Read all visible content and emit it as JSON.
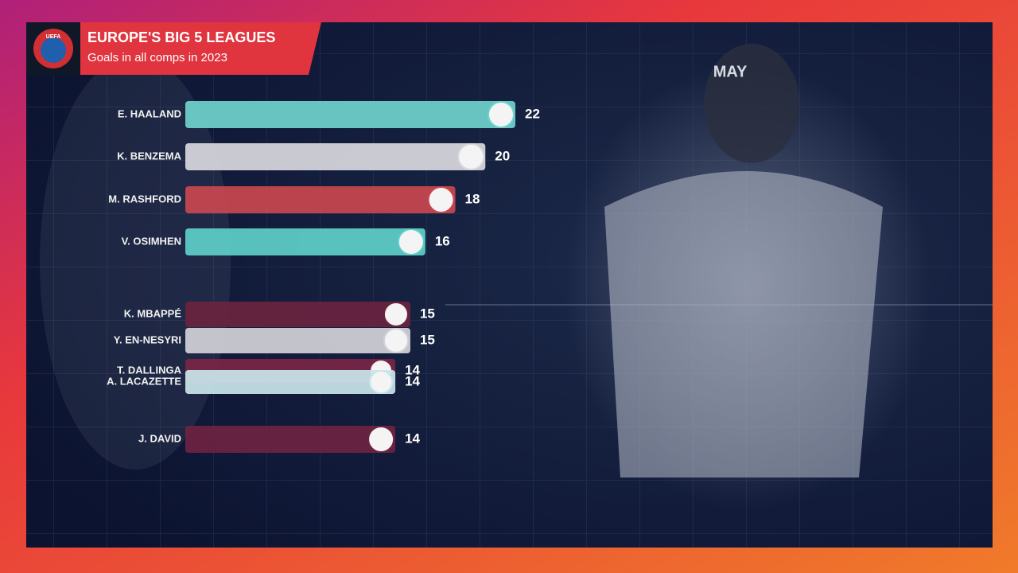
{
  "chart_data": {
    "type": "bar",
    "orientation": "horizontal",
    "badge": "UEFA",
    "title": "EUROPE'S BIG 5 LEAGUES",
    "subtitle": "Goals in all comps in 2023",
    "period": "MAY",
    "categories": [
      "E. HAALAND",
      "K. BENZEMA",
      "M. RASHFORD",
      "V. OSIMHEN",
      "K. MBAPPÉ",
      "Y. EN-NESYRI",
      "T. DALLINGA",
      "A. LACAZETTE",
      "J. DAVID"
    ],
    "values": [
      22,
      20,
      18,
      16,
      15,
      15,
      14,
      14,
      14
    ],
    "colors": [
      "#6fd3cc",
      "#d9d9de",
      "#c9474f",
      "#5fcfc9",
      "#6a2440",
      "#d2d2d8",
      "#7a2545",
      "#c9e6ea",
      "#6e2342"
    ]
  }
}
